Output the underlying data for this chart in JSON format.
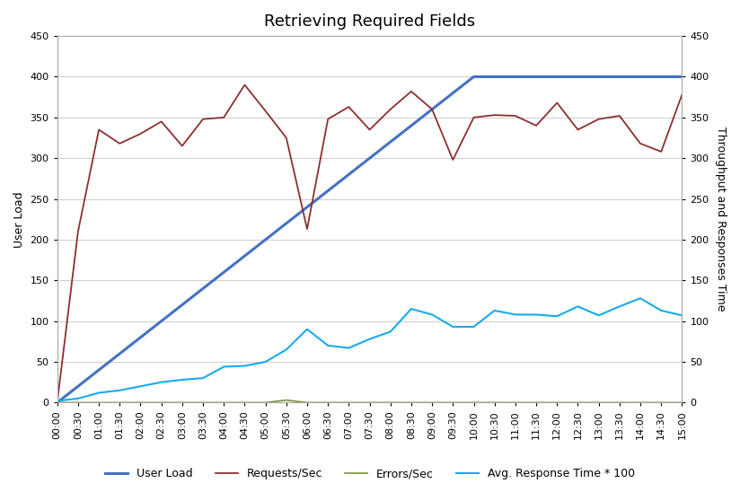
{
  "title": "Retrieving Required Fields",
  "ylabel_left": "User Load",
  "ylabel_right": "Throughput and Responses Time",
  "x_labels": [
    "00:00",
    "00:30",
    "01:00",
    "01:30",
    "02:00",
    "02:30",
    "03:00",
    "03:30",
    "04:00",
    "04:30",
    "05:00",
    "05:30",
    "06:00",
    "06:30",
    "07:00",
    "07:30",
    "08:00",
    "08:30",
    "09:00",
    "09:30",
    "10:00",
    "10:30",
    "11:00",
    "11:30",
    "12:00",
    "12:30",
    "13:00",
    "13:30",
    "14:00",
    "14:30",
    "15:00"
  ],
  "ylim": [
    0,
    450
  ],
  "user_load": [
    0,
    20,
    40,
    60,
    80,
    100,
    120,
    140,
    160,
    180,
    200,
    220,
    240,
    260,
    280,
    300,
    320,
    340,
    360,
    380,
    400,
    400,
    400,
    400,
    400,
    400,
    400,
    400,
    400,
    400,
    400
  ],
  "requests_per_sec": [
    0,
    210,
    335,
    318,
    330,
    345,
    315,
    348,
    350,
    390,
    358,
    325,
    213,
    348,
    363,
    335,
    360,
    382,
    360,
    298,
    350,
    353,
    352,
    340,
    368,
    335,
    348,
    352,
    318,
    308,
    378
  ],
  "errors_per_sec": [
    0,
    0,
    0,
    0,
    0,
    0,
    0,
    0,
    0,
    0,
    0,
    0,
    0,
    0,
    0,
    0,
    0,
    0,
    0,
    0,
    0,
    0,
    0,
    0,
    0,
    0,
    0,
    0,
    0,
    0,
    0
  ],
  "errors_spike": [
    0,
    0,
    0,
    0,
    0,
    0,
    0,
    0,
    0,
    0,
    0,
    3,
    0,
    0,
    0,
    0,
    0,
    0,
    0,
    0,
    0,
    0,
    0,
    0,
    0,
    0,
    0,
    0,
    0,
    0,
    0
  ],
  "avg_response_time": [
    2,
    5,
    12,
    15,
    20,
    25,
    28,
    30,
    44,
    45,
    50,
    65,
    90,
    70,
    67,
    78,
    87,
    115,
    108,
    93,
    93,
    113,
    108,
    108,
    106,
    118,
    107,
    118,
    128,
    113,
    107
  ],
  "user_load_color": "#4472C4",
  "requests_color": "#8B3030",
  "errors_color": "#76923C",
  "avg_response_color": "#17ACEA",
  "background_color": "#FFFFFF",
  "grid_color": "#D0D0D0",
  "title_fontsize": 13,
  "axis_fontsize": 9,
  "tick_fontsize": 8,
  "legend_fontsize": 9
}
